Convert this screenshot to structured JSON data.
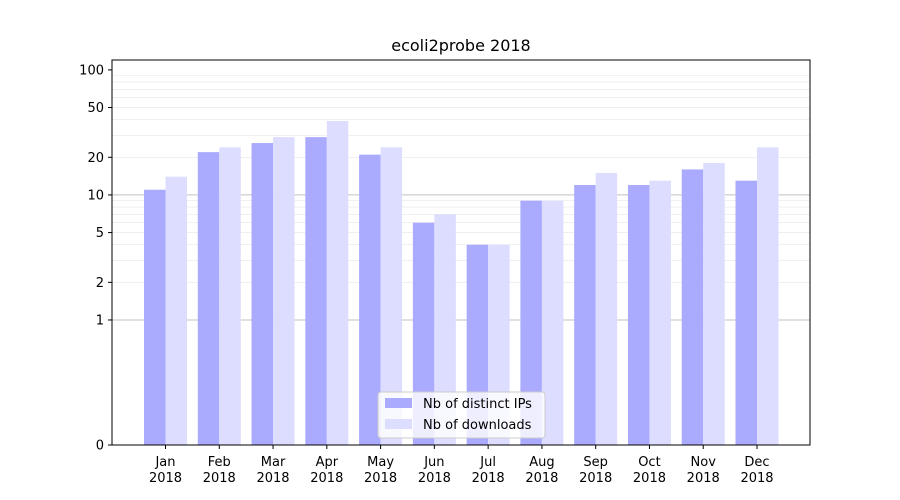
{
  "chart_data": {
    "type": "bar",
    "title": "ecoli2probe 2018",
    "xlabel": "",
    "ylabel": "",
    "yscale": "symlog",
    "ylim": [
      0,
      120
    ],
    "yticks": [
      0,
      1,
      2,
      5,
      10,
      20,
      50,
      100
    ],
    "ytick_labels": [
      "0",
      "1",
      "2",
      "5",
      "10",
      "20",
      "50",
      "100"
    ],
    "categories": [
      {
        "month": "Jan",
        "year": "2018"
      },
      {
        "month": "Feb",
        "year": "2018"
      },
      {
        "month": "Mar",
        "year": "2018"
      },
      {
        "month": "Apr",
        "year": "2018"
      },
      {
        "month": "May",
        "year": "2018"
      },
      {
        "month": "Jun",
        "year": "2018"
      },
      {
        "month": "Jul",
        "year": "2018"
      },
      {
        "month": "Aug",
        "year": "2018"
      },
      {
        "month": "Sep",
        "year": "2018"
      },
      {
        "month": "Oct",
        "year": "2018"
      },
      {
        "month": "Nov",
        "year": "2018"
      },
      {
        "month": "Dec",
        "year": "2018"
      }
    ],
    "series": [
      {
        "name": "Nb of distinct IPs",
        "color": "#aaaaff",
        "values": [
          11,
          22,
          26,
          29,
          21,
          6,
          4,
          9,
          12,
          12,
          16,
          13
        ]
      },
      {
        "name": "Nb of downloads",
        "color": "#ddddff",
        "values": [
          14,
          24,
          29,
          39,
          24,
          7,
          4,
          9,
          15,
          13,
          18,
          24
        ]
      }
    ],
    "legend_position": "bottom-center",
    "grid": true
  }
}
